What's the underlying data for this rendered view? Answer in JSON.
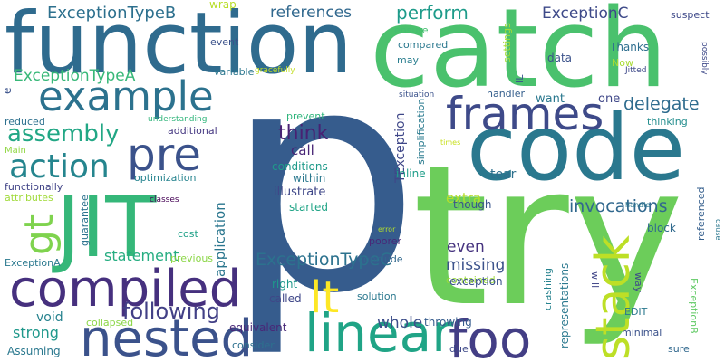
{
  "words": [
    {
      "text": "p",
      "color": "#365c8d"
    },
    {
      "text": "try",
      "color": "#6ccd5a"
    },
    {
      "text": "catch",
      "color": "#4ac16d"
    },
    {
      "text": "code",
      "color": "#2a788e"
    },
    {
      "text": "function",
      "color": "#2f6b8e"
    },
    {
      "text": "JIT",
      "color": "#35b779"
    },
    {
      "text": "compiled",
      "color": "#46307e"
    },
    {
      "text": "nested",
      "color": "#3b528b"
    },
    {
      "text": "linear",
      "color": "#20a486"
    },
    {
      "text": "foo",
      "color": "#433e85"
    },
    {
      "text": "frames",
      "color": "#3e4a89"
    },
    {
      "text": "example",
      "color": "#2c728e"
    },
    {
      "text": "stack",
      "color": "#bddf26"
    },
    {
      "text": "pre",
      "color": "#3b528b"
    },
    {
      "text": "action",
      "color": "#25858e"
    },
    {
      "text": "lt",
      "color": "#fde725"
    },
    {
      "text": "gt",
      "color": "#7fd34e"
    },
    {
      "text": "assembly",
      "color": "#22a785"
    },
    {
      "text": "references",
      "color": "#31688e"
    },
    {
      "text": "ExceptionTypeB",
      "color": "#2d708e"
    },
    {
      "text": "ExceptionC",
      "color": "#3e4a89"
    },
    {
      "text": "ExceptionTypeA",
      "color": "#37b878"
    },
    {
      "text": "ExceptionTypeC",
      "color": "#2c728e"
    },
    {
      "text": "following",
      "color": "#424086"
    },
    {
      "text": "perform",
      "color": "#1e9b8a"
    },
    {
      "text": "delegate",
      "color": "#2f6c8e"
    },
    {
      "text": "invocations",
      "color": "#31688e"
    },
    {
      "text": "think",
      "color": "#482173"
    },
    {
      "text": "statement",
      "color": "#26ad81"
    },
    {
      "text": "missing",
      "color": "#3b528b"
    },
    {
      "text": "whole",
      "color": "#3d4e8a"
    },
    {
      "text": "even",
      "color": "#46337f"
    },
    {
      "text": "strong",
      "color": "#1f988b"
    },
    {
      "text": "void",
      "color": "#26828e"
    },
    {
      "text": "application",
      "color": "#2a768e"
    },
    {
      "text": "extra",
      "color": "#b5de2b"
    },
    {
      "text": "call",
      "color": "#482576"
    },
    {
      "text": "illustrate",
      "color": "#3f4788"
    },
    {
      "text": "conditions",
      "color": "#1f9a8a"
    },
    {
      "text": "within",
      "color": "#2a788e"
    },
    {
      "text": "started",
      "color": "#20a486"
    },
    {
      "text": "prevent",
      "color": "#2fb47c"
    },
    {
      "text": "tear",
      "color": "#2d708e"
    },
    {
      "text": "block",
      "color": "#306a8e"
    },
    {
      "text": "wrap",
      "color": "#b8de29"
    },
    {
      "text": "ensure",
      "color": "#44bf70"
    },
    {
      "text": "compared",
      "color": "#2a788e"
    },
    {
      "text": "may",
      "color": "#287d8e"
    },
    {
      "text": "data",
      "color": "#3b528b"
    },
    {
      "text": "Thanks",
      "color": "#2e6e8e"
    },
    {
      "text": "Now",
      "color": "#a8db34"
    },
    {
      "text": "want",
      "color": "#2a788e"
    },
    {
      "text": "one",
      "color": "#3f4788"
    },
    {
      "text": "thinking",
      "color": "#228d8d"
    },
    {
      "text": "suspect",
      "color": "#3e4989"
    },
    {
      "text": "event",
      "color": "#3b528b"
    },
    {
      "text": "variable",
      "color": "#2a768e"
    },
    {
      "text": "additional",
      "color": "#453781"
    },
    {
      "text": "optimization",
      "color": "#25838e"
    },
    {
      "text": "functionally",
      "color": "#414487"
    },
    {
      "text": "attributes",
      "color": "#a0da39"
    },
    {
      "text": "guarantee",
      "color": "#2c728e"
    },
    {
      "text": "cost",
      "color": "#1fa188"
    },
    {
      "text": "previous",
      "color": "#8bd646"
    },
    {
      "text": "ExceptionA",
      "color": "#2a788e"
    },
    {
      "text": "reduced",
      "color": "#2d708e"
    },
    {
      "text": "Main",
      "color": "#90d743"
    },
    {
      "text": "classes",
      "color": "#440154"
    },
    {
      "text": "understanding",
      "color": "#31b57b"
    },
    {
      "text": "gracefully",
      "color": "#c2df23"
    },
    {
      "text": "Jitted",
      "color": "#3e4989"
    },
    {
      "text": "possibly",
      "color": "#3e4989"
    },
    {
      "text": "settings",
      "color": "#a5db36"
    },
    {
      "text": "IL",
      "color": "#3b528b"
    },
    {
      "text": "TException",
      "color": "#3f4788"
    },
    {
      "text": "simplification",
      "color": "#297a8e"
    },
    {
      "text": "handler",
      "color": "#355f8d"
    },
    {
      "text": "situation",
      "color": "#3b528b"
    },
    {
      "text": "times",
      "color": "#c8e020"
    },
    {
      "text": "inline",
      "color": "#1f9e89"
    },
    {
      "text": "referenced",
      "color": "#355f8d"
    },
    {
      "text": "though",
      "color": "#3a548c"
    },
    {
      "text": "handle",
      "color": "#2a788e"
    },
    {
      "text": "error",
      "color": "#b2dd2d"
    },
    {
      "text": "cause",
      "color": "#2a778e"
    },
    {
      "text": "contained",
      "color": "#9bd93c"
    },
    {
      "text": "poorer",
      "color": "#482878"
    },
    {
      "text": "conclude",
      "color": "#31688e"
    },
    {
      "text": "right",
      "color": "#1f988b"
    },
    {
      "text": "exception",
      "color": "#3b528b"
    },
    {
      "text": "solution",
      "color": "#2a788e"
    },
    {
      "text": "called",
      "color": "#3f4788"
    },
    {
      "text": "equivalent",
      "color": "#482878"
    },
    {
      "text": "consider",
      "color": "#2d708e"
    },
    {
      "text": "throwing",
      "color": "#365c8d"
    },
    {
      "text": "due",
      "color": "#3e4989"
    },
    {
      "text": "representations",
      "color": "#2a788e"
    },
    {
      "text": "crashing",
      "color": "#26828e"
    },
    {
      "text": "way",
      "color": "#3e4a89"
    },
    {
      "text": "will",
      "color": "#404588"
    },
    {
      "text": "EDIT",
      "color": "#2a788e"
    },
    {
      "text": "minimal",
      "color": "#3b528b"
    },
    {
      "text": "sure",
      "color": "#31688e"
    },
    {
      "text": "ExceptionB",
      "color": "#5ec962"
    },
    {
      "text": "Assuming",
      "color": "#2a788e"
    },
    {
      "text": "collapsed",
      "color": "#8bd646"
    },
    {
      "text": "e",
      "color": "#3b528b"
    }
  ]
}
